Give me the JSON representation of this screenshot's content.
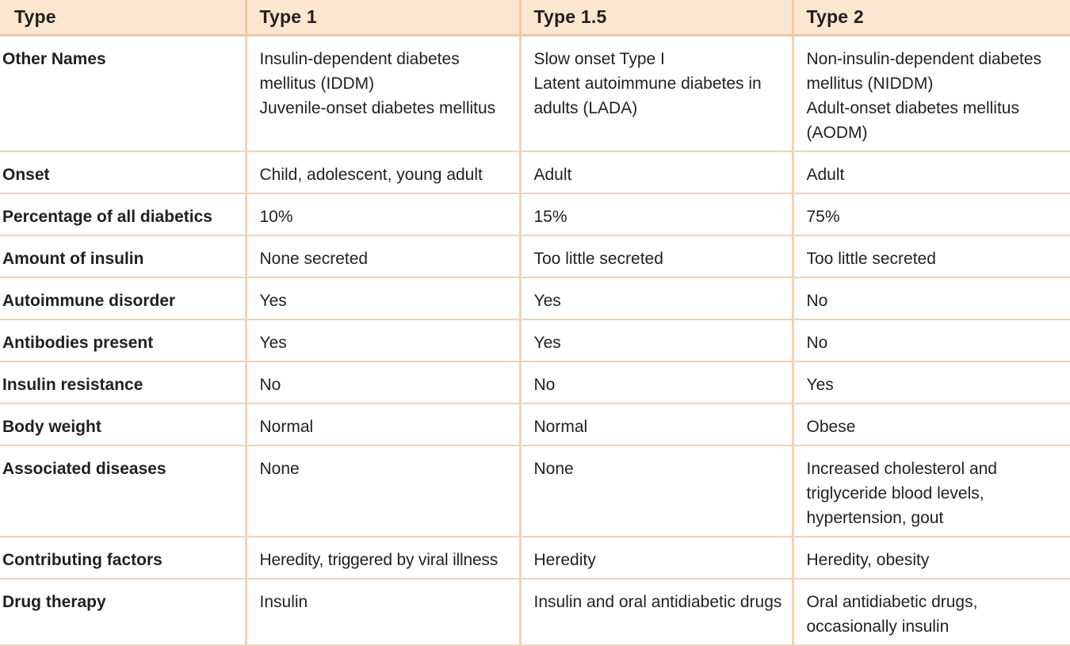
{
  "header": {
    "type_label": "Type",
    "col1": "Type 1",
    "col2": "Type 1.5",
    "col3": "Type 2"
  },
  "rows": [
    {
      "label": "Other Names",
      "type1": [
        "Insulin-dependent diabetes mellitus (IDDM)",
        "Juvenile-onset diabetes mellitus"
      ],
      "type15": [
        "Slow onset Type I",
        "Latent autoimmune diabetes in adults (LADA)"
      ],
      "type2": [
        "Non-insulin-dependent diabetes mellitus (NIDDM)",
        "Adult-onset diabetes mellitus (AODM)"
      ]
    },
    {
      "label": "Onset",
      "type1": "Child, adolescent, young adult",
      "type15": "Adult",
      "type2": "Adult"
    },
    {
      "label": "Percentage of all diabetics",
      "type1": "10%",
      "type15": "15%",
      "type2": "75%"
    },
    {
      "label": "Amount of insulin",
      "type1": "None secreted",
      "type15": "Too little secreted",
      "type2": "Too little secreted"
    },
    {
      "label": "Autoimmune disorder",
      "type1": "Yes",
      "type15": "Yes",
      "type2": "No"
    },
    {
      "label": "Antibodies present",
      "type1": "Yes",
      "type15": "Yes",
      "type2": "No"
    },
    {
      "label": "Insulin resistance",
      "type1": "No",
      "type15": "No",
      "type2": "Yes"
    },
    {
      "label": "Body weight",
      "type1": "Normal",
      "type15": "Normal",
      "type2": "Obese"
    },
    {
      "label": "Associated diseases",
      "type1": "None",
      "type15": "None",
      "type2": "Increased cholesterol and triglyceride blood levels, hypertension, gout"
    },
    {
      "label": "Contributing factors",
      "type1": "Heredity, triggered by viral illness",
      "type15": "Heredity",
      "type2": "Heredity, obesity"
    },
    {
      "label": "Drug therapy",
      "type1": "Insulin",
      "type15": "Insulin and oral antidiabetic drugs",
      "type2": "Oral antidiabetic drugs, occasionally insulin"
    }
  ]
}
